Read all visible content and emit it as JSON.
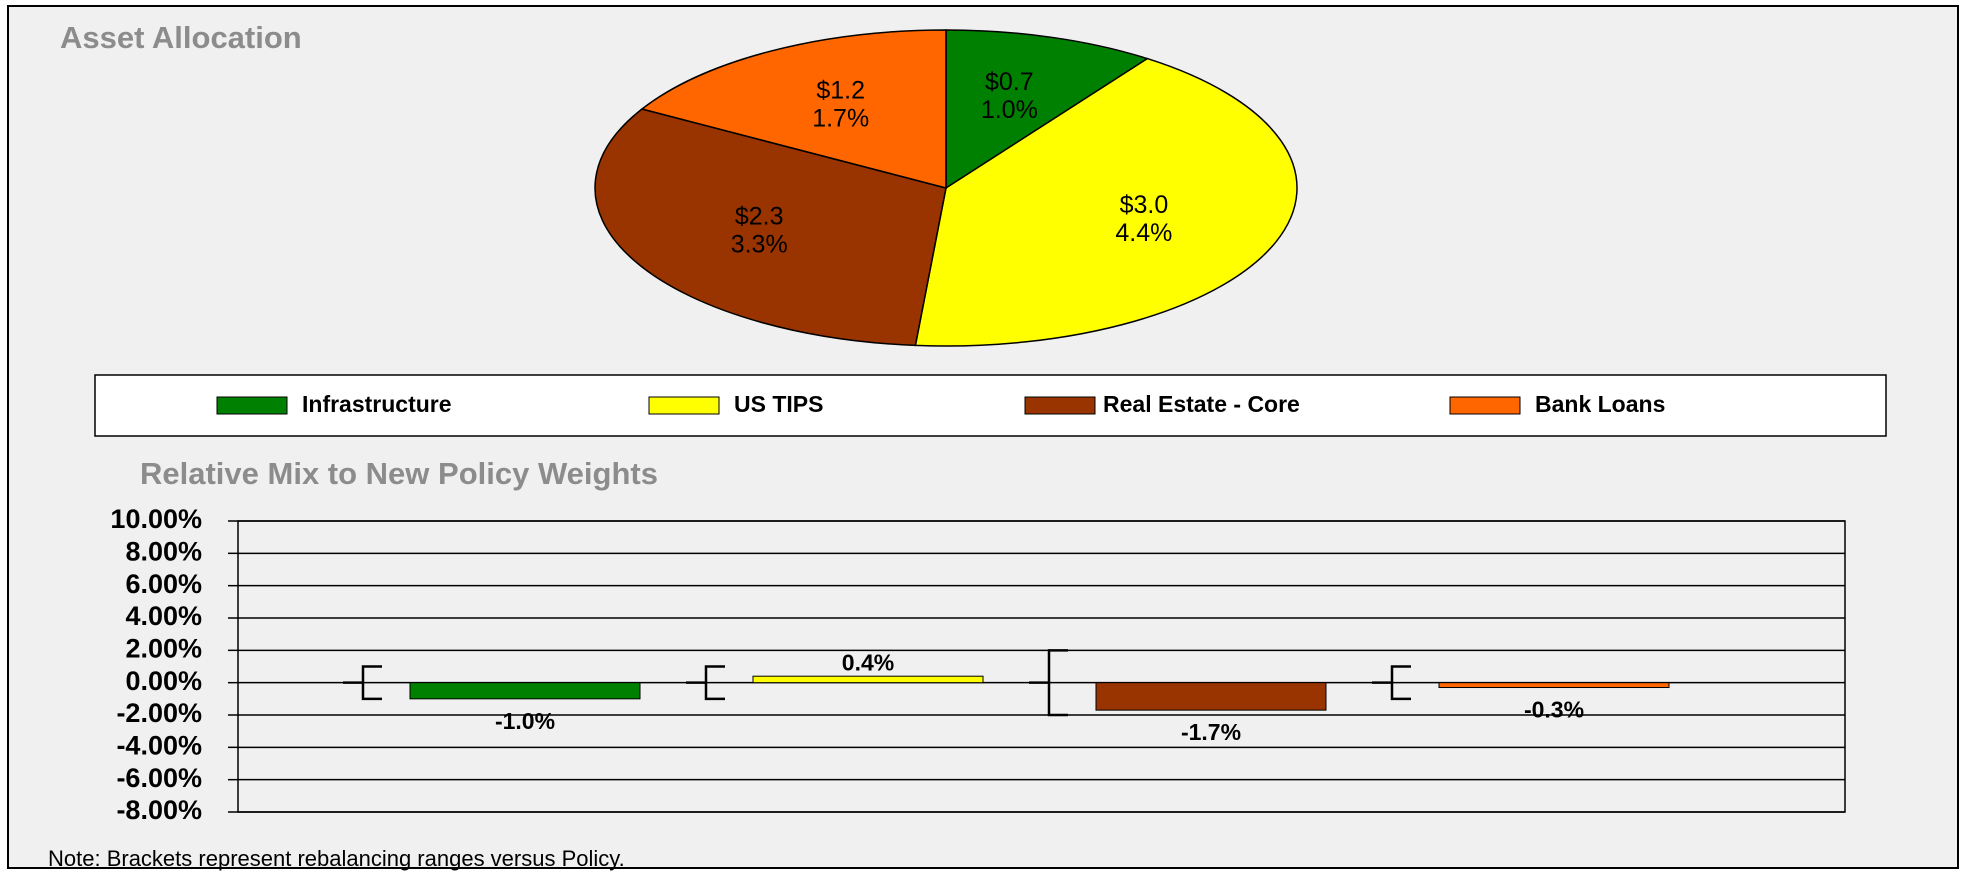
{
  "chart_data": [
    {
      "type": "pie",
      "title": "Asset Allocation",
      "categories": [
        "Infrastructure",
        "US TIPS",
        "Real Estate - Core",
        "Bank Loans"
      ],
      "values": [
        0.7,
        3.0,
        2.3,
        1.2
      ],
      "value_labels": [
        "$0.7",
        "$3.0",
        "$2.3",
        "$1.2"
      ],
      "percentages": [
        1.0,
        4.4,
        3.3,
        1.7
      ],
      "percentage_labels": [
        "1.0%",
        "4.4%",
        "3.3%",
        "1.7%"
      ],
      "colors": [
        "#008000",
        "#ffff00",
        "#993300",
        "#ff6600"
      ],
      "legend": "bottom"
    },
    {
      "type": "bar",
      "title": "Relative Mix to New Policy Weights",
      "categories": [
        null,
        null,
        null,
        null
      ],
      "values": [
        -1.0,
        0.4,
        -1.7,
        -0.3
      ],
      "value_labels": [
        "-1.0%",
        "0.4%",
        "-1.7%",
        "-0.3%"
      ],
      "ranges": [
        [
          -1,
          1
        ],
        [
          -1,
          1
        ],
        [
          -2,
          2
        ],
        [
          -1,
          1
        ]
      ],
      "colors": [
        "#008000",
        "#ffff00",
        "#993300",
        "#ff6600"
      ],
      "ylim": [
        -8,
        10
      ],
      "yticks": [
        {
          "value": 10,
          "label": "10.00%"
        },
        {
          "value": 8,
          "label": "8.00%"
        },
        {
          "value": 6,
          "label": "6.00%"
        },
        {
          "value": 4,
          "label": "4.00%"
        },
        {
          "value": 2,
          "label": "2.00%"
        },
        {
          "value": 0,
          "label": "0.00%"
        },
        {
          "value": -2,
          "label": "-2.00%"
        },
        {
          "value": -4,
          "label": "-4.00%"
        },
        {
          "value": -6,
          "label": "-6.00%"
        },
        {
          "value": -8,
          "label": "-8.00%"
        }
      ],
      "grid": true,
      "note": "Note: Brackets represent rebalancing ranges versus Policy."
    }
  ]
}
